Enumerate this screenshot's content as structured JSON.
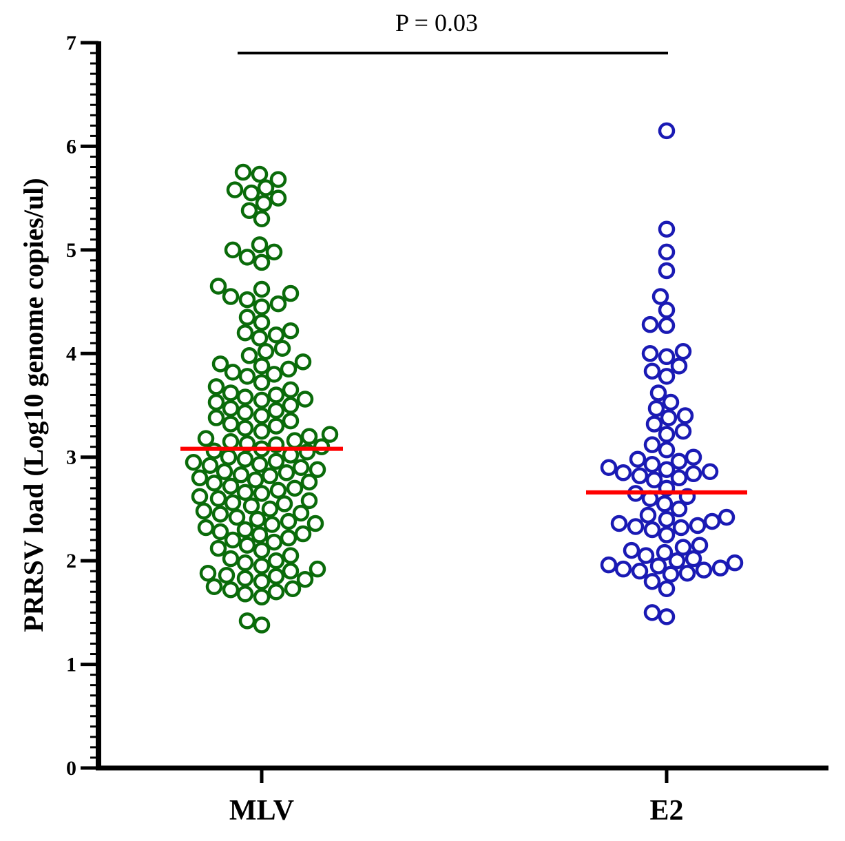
{
  "chart_data": {
    "type": "scatter",
    "subtype": "dot-plot",
    "title": "",
    "xlabel": "",
    "ylabel": "PRRSV load (Log10 genome copies/ul)",
    "ylim": [
      0,
      7
    ],
    "yticks": [
      "0",
      "1",
      "2",
      "3",
      "4",
      "5",
      "6",
      "7"
    ],
    "categories": [
      "MLV",
      "E2"
    ],
    "series": [
      {
        "name": "MLV",
        "color": "#0a6b0a",
        "marker": "open-circle",
        "mean": 3.08,
        "values": [
          5.75,
          5.73,
          5.68,
          5.6,
          5.58,
          5.55,
          5.5,
          5.45,
          5.38,
          5.3,
          5.05,
          5.0,
          4.98,
          4.93,
          4.88,
          4.65,
          4.62,
          4.58,
          4.55,
          4.52,
          4.48,
          4.45,
          4.35,
          4.3,
          4.22,
          4.2,
          4.18,
          4.15,
          4.05,
          4.02,
          3.98,
          3.92,
          3.9,
          3.88,
          3.85,
          3.82,
          3.8,
          3.78,
          3.72,
          3.68,
          3.65,
          3.62,
          3.6,
          3.58,
          3.56,
          3.55,
          3.53,
          3.5,
          3.47,
          3.45,
          3.43,
          3.4,
          3.38,
          3.35,
          3.32,
          3.3,
          3.28,
          3.25,
          3.22,
          3.2,
          3.18,
          3.16,
          3.15,
          3.13,
          3.12,
          3.1,
          3.08,
          3.06,
          3.05,
          3.02,
          3.0,
          2.98,
          2.96,
          2.95,
          2.93,
          2.92,
          2.9,
          2.88,
          2.86,
          2.85,
          2.83,
          2.82,
          2.8,
          2.78,
          2.76,
          2.75,
          2.72,
          2.7,
          2.68,
          2.66,
          2.65,
          2.62,
          2.6,
          2.58,
          2.56,
          2.55,
          2.53,
          2.5,
          2.48,
          2.46,
          2.45,
          2.42,
          2.4,
          2.38,
          2.36,
          2.35,
          2.32,
          2.3,
          2.28,
          2.26,
          2.25,
          2.22,
          2.2,
          2.18,
          2.15,
          2.12,
          2.1,
          2.05,
          2.02,
          2.0,
          1.98,
          1.95,
          1.92,
          1.9,
          1.88,
          1.86,
          1.85,
          1.83,
          1.82,
          1.8,
          1.75,
          1.73,
          1.72,
          1.7,
          1.68,
          1.65,
          1.42,
          1.38
        ]
      },
      {
        "name": "E2",
        "color": "#1a1ab4",
        "marker": "open-circle",
        "mean": 2.66,
        "values": [
          6.15,
          5.2,
          4.98,
          4.8,
          4.55,
          4.42,
          4.28,
          4.27,
          4.02,
          4.0,
          3.97,
          3.88,
          3.83,
          3.78,
          3.62,
          3.53,
          3.47,
          3.4,
          3.38,
          3.32,
          3.25,
          3.22,
          3.12,
          3.07,
          3.0,
          2.98,
          2.96,
          2.93,
          2.9,
          2.88,
          2.86,
          2.85,
          2.84,
          2.82,
          2.8,
          2.78,
          2.7,
          2.65,
          2.62,
          2.6,
          2.55,
          2.5,
          2.44,
          2.42,
          2.4,
          2.38,
          2.36,
          2.34,
          2.33,
          2.32,
          2.3,
          2.25,
          2.15,
          2.13,
          2.1,
          2.08,
          2.05,
          2.02,
          2.0,
          1.98,
          1.96,
          1.95,
          1.93,
          1.92,
          1.91,
          1.9,
          1.88,
          1.87,
          1.8,
          1.73,
          1.5,
          1.46
        ]
      }
    ],
    "annotations": [
      {
        "text": "P = 0.03",
        "type": "significance-bracket",
        "between": [
          "MLV",
          "E2"
        ],
        "y": 6.9
      }
    ]
  }
}
